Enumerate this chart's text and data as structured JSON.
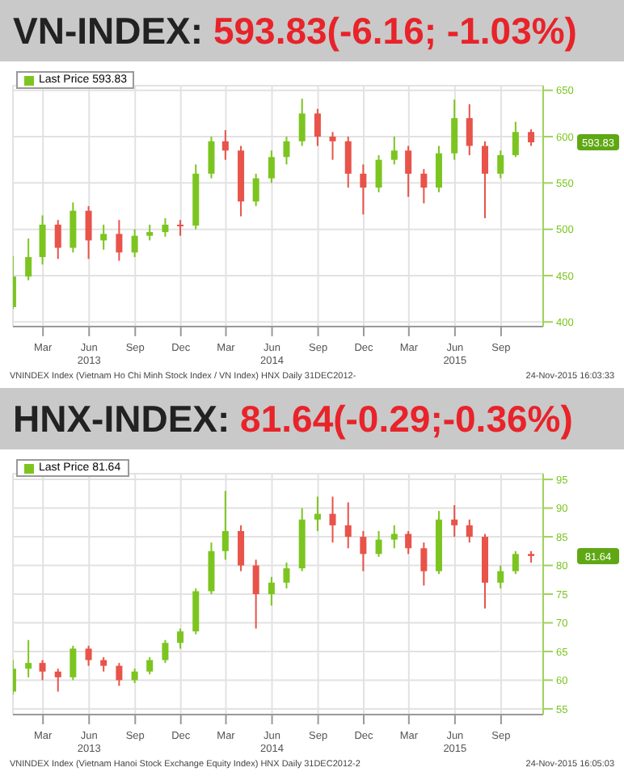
{
  "chart_data": [
    {
      "type": "candlestick",
      "title": "VN-INDEX: 593.83(-6.16; -1.03%)",
      "x": [
        "2013-01",
        "2013-02",
        "2013-03",
        "2013-04",
        "2013-05",
        "2013-06",
        "2013-07",
        "2013-08",
        "2013-09",
        "2013-10",
        "2013-11",
        "2013-12",
        "2014-01",
        "2014-02",
        "2014-03",
        "2014-04",
        "2014-05",
        "2014-06",
        "2014-07",
        "2014-08",
        "2014-09",
        "2014-10",
        "2014-11",
        "2014-12",
        "2015-01",
        "2015-02",
        "2015-03",
        "2015-04",
        "2015-05",
        "2015-06",
        "2015-07",
        "2015-08",
        "2015-09",
        "2015-10",
        "2015-11"
      ],
      "series": [
        {
          "name": "Last Price 593.83",
          "color": "#7cc520",
          "ohlc": [
            [
              416,
              471,
              414,
              449
            ],
            [
              449,
              490,
              445,
              470
            ],
            [
              470,
              515,
              462,
              505
            ],
            [
              505,
              510,
              468,
              480
            ],
            [
              480,
              529,
              475,
              520
            ],
            [
              520,
              525,
              468,
              488
            ],
            [
              488,
              505,
              478,
              495
            ],
            [
              495,
              510,
              466,
              475
            ],
            [
              475,
              500,
              470,
              493
            ],
            [
              493,
              505,
              488,
              497
            ],
            [
              497,
              512,
              492,
              505
            ],
            [
              505,
              510,
              493,
              504
            ],
            [
              504,
              570,
              500,
              560
            ],
            [
              560,
              600,
              555,
              595
            ],
            [
              595,
              607,
              575,
              585
            ],
            [
              585,
              590,
              514,
              530
            ],
            [
              530,
              560,
              525,
              555
            ],
            [
              555,
              585,
              550,
              578
            ],
            [
              578,
              600,
              570,
              595
            ],
            [
              595,
              641,
              590,
              625
            ],
            [
              625,
              630,
              590,
              600
            ],
            [
              600,
              605,
              575,
              595
            ],
            [
              595,
              600,
              545,
              560
            ],
            [
              560,
              570,
              516,
              545
            ],
            [
              545,
              580,
              540,
              575
            ],
            [
              575,
              600,
              570,
              585
            ],
            [
              585,
              590,
              535,
              560
            ],
            [
              560,
              565,
              528,
              545
            ],
            [
              545,
              590,
              540,
              582
            ],
            [
              582,
              640,
              575,
              620
            ],
            [
              620,
              635,
              580,
              590
            ],
            [
              590,
              595,
              512,
              560
            ],
            [
              560,
              585,
              555,
              580
            ],
            [
              580,
              616,
              578,
              605
            ],
            [
              605,
              608,
              590,
              593.83
            ]
          ],
          "colors": [
            "#7cc520",
            "#7cc520",
            "#7cc520",
            "#e8534a",
            "#7cc520",
            "#e8534a",
            "#7cc520",
            "#e8534a",
            "#7cc520",
            "#7cc520",
            "#7cc520",
            "#e8534a",
            "#7cc520",
            "#7cc520",
            "#e8534a",
            "#e8534a",
            "#7cc520",
            "#7cc520",
            "#7cc520",
            "#7cc520",
            "#e8534a",
            "#e8534a",
            "#e8534a",
            "#e8534a",
            "#7cc520",
            "#7cc520",
            "#e8534a",
            "#e8534a",
            "#7cc520",
            "#7cc520",
            "#e8534a",
            "#e8534a",
            "#7cc520",
            "#7cc520",
            "#e8534a"
          ]
        }
      ],
      "xlim": [
        "2012-12-31",
        "2015-11-24"
      ],
      "xticks": [
        {
          "value": "2013-03",
          "label": "Mar"
        },
        {
          "value": "2013-06",
          "label": "Jun\n2013"
        },
        {
          "value": "2013-09",
          "label": "Sep"
        },
        {
          "value": "2013-12",
          "label": "Dec"
        },
        {
          "value": "2014-03",
          "label": "Mar"
        },
        {
          "value": "2014-06",
          "label": "Jun\n2014"
        },
        {
          "value": "2014-09",
          "label": "Sep"
        },
        {
          "value": "2014-12",
          "label": "Dec"
        },
        {
          "value": "2015-03",
          "label": "Mar"
        },
        {
          "value": "2015-06",
          "label": "Jun\n2015"
        },
        {
          "value": "2015-09",
          "label": "Sep"
        }
      ],
      "ylim": [
        395,
        655
      ],
      "yticks": [
        400,
        450,
        500,
        550,
        600,
        650
      ],
      "grid": true,
      "legend": "top left",
      "annotations": [
        "593.83",
        "VNINDEX Index (Vietnam Ho Chi Minh Stock Index / VN Index) HNX Daily 31DEC2012-",
        "24-Nov-2015 16:03:33"
      ]
    },
    {
      "type": "candlestick",
      "title": "HNX-INDEX: 81.64(-0.29;-0.36%)",
      "x": [
        "2013-01",
        "2013-02",
        "2013-03",
        "2013-04",
        "2013-05",
        "2013-06",
        "2013-07",
        "2013-08",
        "2013-09",
        "2013-10",
        "2013-11",
        "2013-12",
        "2014-01",
        "2014-02",
        "2014-03",
        "2014-04",
        "2014-05",
        "2014-06",
        "2014-07",
        "2014-08",
        "2014-09",
        "2014-10",
        "2014-11",
        "2014-12",
        "2015-01",
        "2015-02",
        "2015-03",
        "2015-04",
        "2015-05",
        "2015-06",
        "2015-07",
        "2015-08",
        "2015-09",
        "2015-10",
        "2015-11"
      ],
      "series": [
        {
          "name": "Last Price 81.64",
          "color": "#7cc520",
          "ohlc": [
            [
              58,
              63.5,
              57.5,
              62
            ],
            [
              62,
              67,
              60.5,
              63
            ],
            [
              63,
              63.5,
              60,
              61.5
            ],
            [
              61.5,
              62,
              58,
              60.5
            ],
            [
              60.5,
              66,
              60,
              65.5
            ],
            [
              65.5,
              66,
              62.5,
              63.5
            ],
            [
              63.5,
              64,
              61.5,
              62.5
            ],
            [
              62.5,
              63,
              59,
              60
            ],
            [
              60,
              62,
              59.5,
              61.5
            ],
            [
              61.5,
              64,
              61,
              63.5
            ],
            [
              63.5,
              67,
              63,
              66.5
            ],
            [
              66.5,
              69,
              65.5,
              68.5
            ],
            [
              68.5,
              76,
              68,
              75.5
            ],
            [
              75.5,
              84,
              75,
              82.5
            ],
            [
              82.5,
              93,
              81,
              86
            ],
            [
              86,
              87,
              79,
              80
            ],
            [
              80,
              81,
              69,
              75
            ],
            [
              75,
              78,
              73,
              77
            ],
            [
              77,
              80.5,
              76,
              79.5
            ],
            [
              79.5,
              90,
              79,
              88
            ],
            [
              88,
              92,
              86,
              89
            ],
            [
              89,
              92,
              84,
              87
            ],
            [
              87,
              91,
              83,
              85
            ],
            [
              85,
              86,
              79,
              82
            ],
            [
              82,
              86,
              81.5,
              84.5
            ],
            [
              84.5,
              87,
              83,
              85.5
            ],
            [
              85.5,
              86,
              82,
              83
            ],
            [
              83,
              84,
              76.5,
              79
            ],
            [
              79,
              89.5,
              78.5,
              88
            ],
            [
              88,
              90.5,
              85,
              87
            ],
            [
              87,
              88,
              84,
              85
            ],
            [
              85,
              85.5,
              72.5,
              77
            ],
            [
              77,
              80,
              76,
              79
            ],
            [
              79,
              82.5,
              78.5,
              82
            ],
            [
              82,
              82.5,
              80.5,
              81.64
            ]
          ],
          "colors": [
            "#7cc520",
            "#7cc520",
            "#e8534a",
            "#e8534a",
            "#7cc520",
            "#e8534a",
            "#e8534a",
            "#e8534a",
            "#7cc520",
            "#7cc520",
            "#7cc520",
            "#7cc520",
            "#7cc520",
            "#7cc520",
            "#7cc520",
            "#e8534a",
            "#e8534a",
            "#7cc520",
            "#7cc520",
            "#7cc520",
            "#7cc520",
            "#e8534a",
            "#e8534a",
            "#e8534a",
            "#7cc520",
            "#7cc520",
            "#e8534a",
            "#e8534a",
            "#7cc520",
            "#e8534a",
            "#e8534a",
            "#e8534a",
            "#7cc520",
            "#7cc520",
            "#e8534a"
          ]
        }
      ],
      "xlim": [
        "2012-12-31",
        "2015-11-24"
      ],
      "xticks": [
        {
          "value": "2013-03",
          "label": "Mar"
        },
        {
          "value": "2013-06",
          "label": "Jun\n2013"
        },
        {
          "value": "2013-09",
          "label": "Sep"
        },
        {
          "value": "2013-12",
          "label": "Dec"
        },
        {
          "value": "2014-03",
          "label": "Mar"
        },
        {
          "value": "2014-06",
          "label": "Jun\n2014"
        },
        {
          "value": "2014-09",
          "label": "Sep"
        },
        {
          "value": "2014-12",
          "label": "Dec"
        },
        {
          "value": "2015-03",
          "label": "Mar"
        },
        {
          "value": "2015-06",
          "label": "Jun\n2015"
        },
        {
          "value": "2015-09",
          "label": "Sep"
        }
      ],
      "ylim": [
        54,
        96
      ],
      "yticks": [
        55,
        60,
        65,
        70,
        75,
        80,
        85,
        90,
        95
      ],
      "grid": true,
      "legend": "top left",
      "annotations": [
        "81.64",
        "VNINDEX Index (Vietnam Hanoi Stock Exchange Equity Index) HNX Daily 31DEC2012-2",
        "24-Nov-2015 16:05:03"
      ]
    }
  ]
}
